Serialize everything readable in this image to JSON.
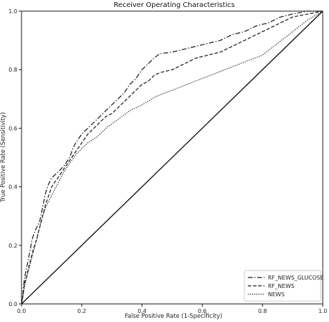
{
  "chart_data": {
    "type": "line",
    "title": "Receiver Operating Characteristics",
    "xlabel": "False Positive Rate (1-Specificity)",
    "ylabel": "True Positive Rate (Sensitivity)",
    "xlim": [
      0,
      1
    ],
    "ylim": [
      0,
      1
    ],
    "xticks": [
      "0.0",
      "0.2",
      "0.4",
      "0.6",
      "0.8",
      "1.0"
    ],
    "yticks": [
      "0.0",
      "0.2",
      "0.4",
      "0.6",
      "0.8",
      "1.0"
    ],
    "grid": false,
    "legend_position": "bottom-right",
    "series": [
      {
        "name": "RF_NEWS_GLUCOSE",
        "style": "dashdot",
        "color": "#111111",
        "points": [
          [
            0,
            0
          ],
          [
            0.005,
            0.04
          ],
          [
            0.01,
            0.09
          ],
          [
            0.02,
            0.14
          ],
          [
            0.03,
            0.19
          ],
          [
            0.035,
            0.22
          ],
          [
            0.045,
            0.25
          ],
          [
            0.06,
            0.28
          ],
          [
            0.07,
            0.33
          ],
          [
            0.08,
            0.38
          ],
          [
            0.09,
            0.41
          ],
          [
            0.1,
            0.43
          ],
          [
            0.12,
            0.45
          ],
          [
            0.14,
            0.47
          ],
          [
            0.16,
            0.5
          ],
          [
            0.17,
            0.53
          ],
          [
            0.18,
            0.55
          ],
          [
            0.2,
            0.58
          ],
          [
            0.22,
            0.6
          ],
          [
            0.24,
            0.62
          ],
          [
            0.26,
            0.64
          ],
          [
            0.28,
            0.66
          ],
          [
            0.3,
            0.68
          ],
          [
            0.32,
            0.7
          ],
          [
            0.34,
            0.72
          ],
          [
            0.36,
            0.75
          ],
          [
            0.38,
            0.77
          ],
          [
            0.4,
            0.8
          ],
          [
            0.42,
            0.82
          ],
          [
            0.44,
            0.84
          ],
          [
            0.46,
            0.855
          ],
          [
            0.5,
            0.86
          ],
          [
            0.54,
            0.87
          ],
          [
            0.58,
            0.88
          ],
          [
            0.62,
            0.89
          ],
          [
            0.66,
            0.9
          ],
          [
            0.7,
            0.92
          ],
          [
            0.74,
            0.93
          ],
          [
            0.78,
            0.95
          ],
          [
            0.82,
            0.96
          ],
          [
            0.86,
            0.98
          ],
          [
            0.9,
            0.99
          ],
          [
            0.95,
            1.0
          ],
          [
            1.0,
            1.0
          ]
        ]
      },
      {
        "name": "RF_NEWS",
        "style": "dashed",
        "color": "#111111",
        "points": [
          [
            0,
            0
          ],
          [
            0.005,
            0.03
          ],
          [
            0.01,
            0.07
          ],
          [
            0.02,
            0.11
          ],
          [
            0.03,
            0.15
          ],
          [
            0.04,
            0.19
          ],
          [
            0.05,
            0.22
          ],
          [
            0.06,
            0.26
          ],
          [
            0.07,
            0.3
          ],
          [
            0.08,
            0.34
          ],
          [
            0.09,
            0.37
          ],
          [
            0.1,
            0.4
          ],
          [
            0.12,
            0.43
          ],
          [
            0.14,
            0.46
          ],
          [
            0.16,
            0.49
          ],
          [
            0.18,
            0.52
          ],
          [
            0.2,
            0.55
          ],
          [
            0.22,
            0.58
          ],
          [
            0.24,
            0.6
          ],
          [
            0.26,
            0.62
          ],
          [
            0.28,
            0.64
          ],
          [
            0.3,
            0.65
          ],
          [
            0.32,
            0.67
          ],
          [
            0.34,
            0.69
          ],
          [
            0.36,
            0.71
          ],
          [
            0.38,
            0.73
          ],
          [
            0.4,
            0.75
          ],
          [
            0.42,
            0.76
          ],
          [
            0.44,
            0.78
          ],
          [
            0.46,
            0.79
          ],
          [
            0.5,
            0.8
          ],
          [
            0.54,
            0.82
          ],
          [
            0.58,
            0.84
          ],
          [
            0.62,
            0.85
          ],
          [
            0.66,
            0.86
          ],
          [
            0.7,
            0.88
          ],
          [
            0.74,
            0.9
          ],
          [
            0.78,
            0.92
          ],
          [
            0.82,
            0.94
          ],
          [
            0.86,
            0.96
          ],
          [
            0.9,
            0.98
          ],
          [
            0.95,
            0.99
          ],
          [
            1.0,
            1.0
          ]
        ]
      },
      {
        "name": "NEWS",
        "style": "dotted",
        "color": "#111111",
        "points": [
          [
            0,
            0
          ],
          [
            0.005,
            0.03
          ],
          [
            0.01,
            0.06
          ],
          [
            0.02,
            0.1
          ],
          [
            0.03,
            0.14
          ],
          [
            0.04,
            0.18
          ],
          [
            0.05,
            0.22
          ],
          [
            0.06,
            0.26
          ],
          [
            0.07,
            0.3
          ],
          [
            0.08,
            0.33
          ],
          [
            0.1,
            0.37
          ],
          [
            0.12,
            0.41
          ],
          [
            0.14,
            0.45
          ],
          [
            0.16,
            0.48
          ],
          [
            0.18,
            0.51
          ],
          [
            0.2,
            0.53
          ],
          [
            0.22,
            0.55
          ],
          [
            0.25,
            0.57
          ],
          [
            0.28,
            0.6
          ],
          [
            0.32,
            0.63
          ],
          [
            0.36,
            0.66
          ],
          [
            0.4,
            0.68
          ],
          [
            0.45,
            0.71
          ],
          [
            0.5,
            0.73
          ],
          [
            0.55,
            0.75
          ],
          [
            0.6,
            0.77
          ],
          [
            0.65,
            0.79
          ],
          [
            0.7,
            0.81
          ],
          [
            0.75,
            0.83
          ],
          [
            0.8,
            0.85
          ],
          [
            0.85,
            0.89
          ],
          [
            0.9,
            0.93
          ],
          [
            0.95,
            0.97
          ],
          [
            1.0,
            1.0
          ]
        ]
      },
      {
        "name": "",
        "style": "solid",
        "color": "#111111",
        "points": [
          [
            0,
            0
          ],
          [
            1,
            1
          ]
        ]
      }
    ]
  }
}
